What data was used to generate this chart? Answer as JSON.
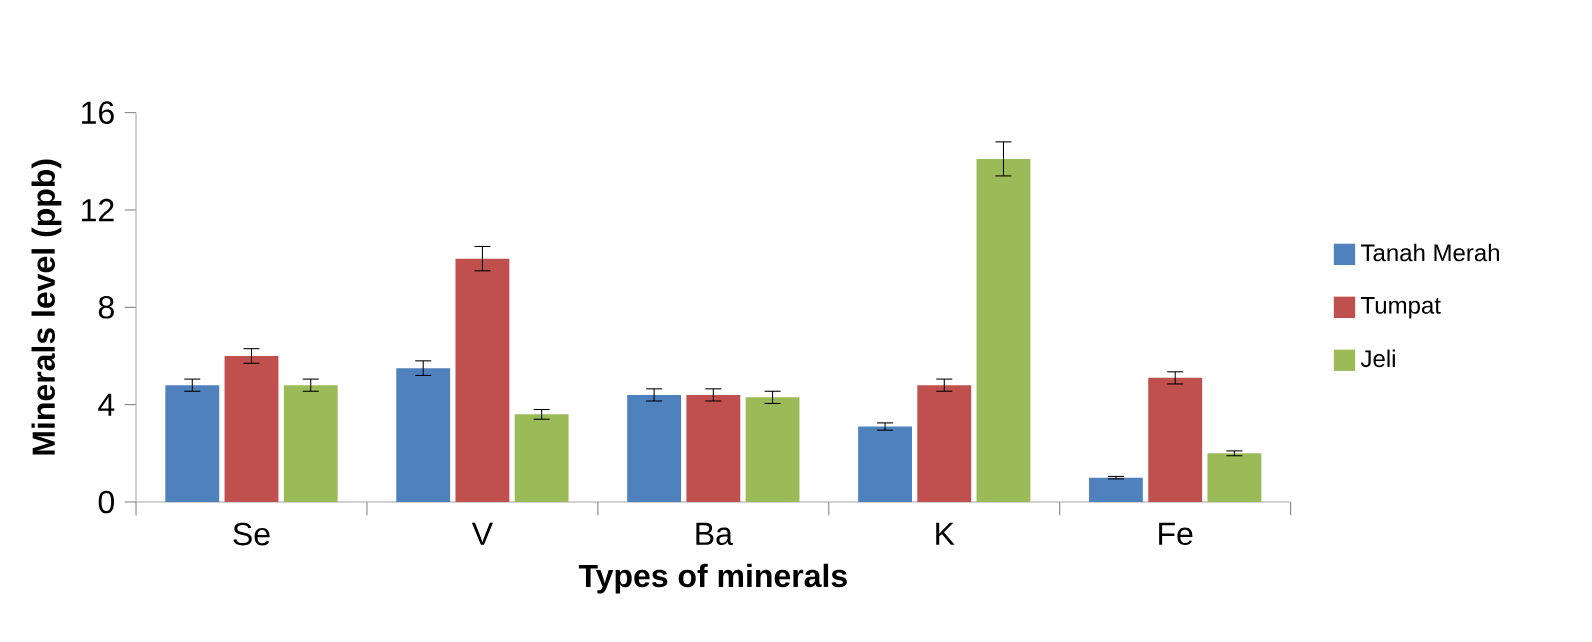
{
  "chart_data": {
    "type": "bar",
    "xlabel": "Types of minerals",
    "ylabel": "Minerals level (ppb)",
    "categories": [
      "Se",
      "V",
      "Ba",
      "K",
      "Fe"
    ],
    "series": [
      {
        "name": "Tanah Merah",
        "color": "#4f81bd",
        "values": [
          4.8,
          5.5,
          4.4,
          3.1,
          1.0
        ],
        "errors": [
          0.25,
          0.3,
          0.25,
          0.15,
          0.05
        ]
      },
      {
        "name": "Tumpat",
        "color": "#c0504d",
        "values": [
          6.0,
          10.0,
          4.4,
          4.8,
          5.1
        ],
        "errors": [
          0.3,
          0.5,
          0.25,
          0.25,
          0.25
        ]
      },
      {
        "name": "Jeli",
        "color": "#9bbb59",
        "values": [
          4.8,
          3.6,
          4.3,
          14.1,
          2.0
        ],
        "errors": [
          0.25,
          0.2,
          0.25,
          0.7,
          0.1
        ]
      }
    ],
    "ylim": [
      0,
      16
    ],
    "yticks": [
      0,
      4,
      8,
      12,
      16
    ],
    "legend": "right"
  }
}
